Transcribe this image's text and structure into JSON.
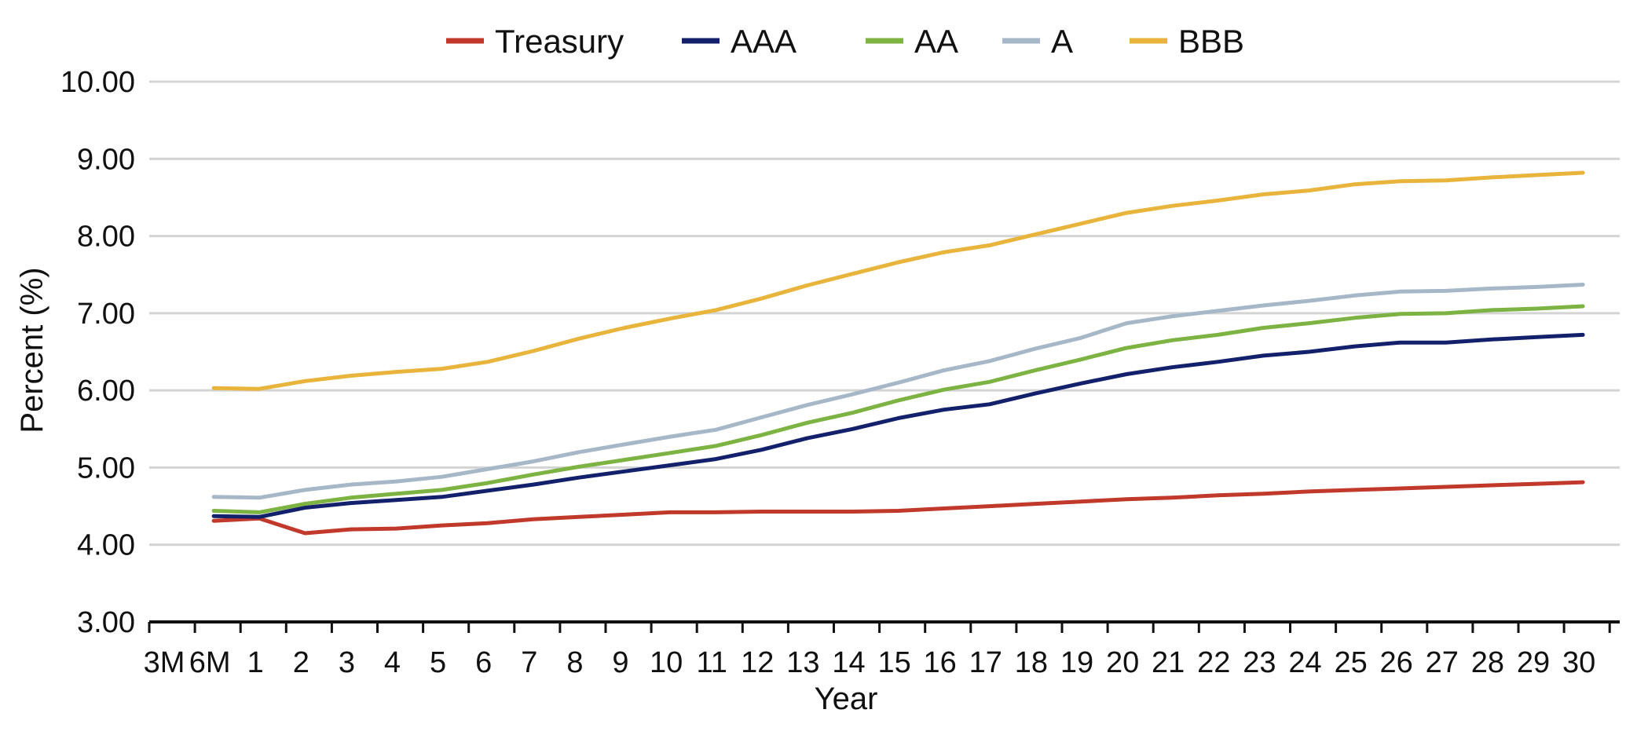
{
  "chart_data": {
    "type": "line",
    "title": "",
    "xlabel": "Year",
    "ylabel": "Percent (%)",
    "ylim": [
      3.0,
      10.0
    ],
    "yticks": [
      "3.00",
      "4.00",
      "5.00",
      "6.00",
      "7.00",
      "8.00",
      "9.00",
      "10.00"
    ],
    "grid": "horizontal",
    "legend_position": "top",
    "categories": [
      "3M",
      "6M",
      "1",
      "2",
      "3",
      "4",
      "5",
      "6",
      "7",
      "8",
      "9",
      "10",
      "11",
      "12",
      "13",
      "14",
      "15",
      "16",
      "17",
      "18",
      "19",
      "20",
      "21",
      "22",
      "23",
      "24",
      "25",
      "26",
      "27",
      "28",
      "29",
      "30"
    ],
    "series": [
      {
        "name": "Treasury",
        "color": "#c0392b",
        "values": [
          null,
          4.31,
          4.34,
          4.15,
          4.2,
          4.21,
          4.25,
          4.28,
          4.33,
          4.36,
          4.39,
          4.42,
          4.42,
          4.43,
          4.43,
          4.43,
          4.44,
          4.47,
          4.5,
          4.53,
          4.56,
          4.59,
          4.61,
          4.64,
          4.66,
          4.69,
          4.71,
          4.73,
          4.75,
          4.77,
          4.79,
          4.81
        ]
      },
      {
        "name": "AAA",
        "color": "#13206b",
        "values": [
          null,
          4.37,
          4.36,
          4.48,
          4.54,
          4.58,
          4.62,
          4.7,
          4.78,
          4.87,
          4.95,
          5.03,
          5.11,
          5.23,
          5.38,
          5.5,
          5.64,
          5.75,
          5.82,
          5.96,
          6.09,
          6.21,
          6.3,
          6.37,
          6.45,
          6.5,
          6.57,
          6.62,
          6.62,
          6.66,
          6.69,
          6.72
        ]
      },
      {
        "name": "AA",
        "color": "#7cb342",
        "values": [
          null,
          4.44,
          4.42,
          4.53,
          4.61,
          4.66,
          4.71,
          4.8,
          4.91,
          5.01,
          5.1,
          5.19,
          5.28,
          5.42,
          5.58,
          5.71,
          5.87,
          6.01,
          6.11,
          6.26,
          6.4,
          6.55,
          6.65,
          6.72,
          6.81,
          6.87,
          6.94,
          6.99,
          7.0,
          7.04,
          7.06,
          7.09
        ]
      },
      {
        "name": "A",
        "color": "#a6b8c8",
        "values": [
          null,
          4.62,
          4.61,
          4.71,
          4.78,
          4.82,
          4.88,
          4.98,
          5.08,
          5.2,
          5.3,
          5.4,
          5.49,
          5.65,
          5.81,
          5.95,
          6.1,
          6.26,
          6.38,
          6.54,
          6.68,
          6.87,
          6.96,
          7.03,
          7.1,
          7.16,
          7.23,
          7.28,
          7.29,
          7.32,
          7.34,
          7.37
        ]
      },
      {
        "name": "BBB",
        "color": "#e9b43c",
        "values": [
          null,
          6.03,
          6.02,
          6.12,
          6.19,
          6.24,
          6.28,
          6.37,
          6.51,
          6.67,
          6.81,
          6.93,
          7.04,
          7.19,
          7.36,
          7.51,
          7.66,
          7.79,
          7.88,
          8.02,
          8.16,
          8.3,
          8.39,
          8.46,
          8.54,
          8.59,
          8.67,
          8.71,
          8.72,
          8.76,
          8.79,
          8.82
        ]
      }
    ]
  }
}
